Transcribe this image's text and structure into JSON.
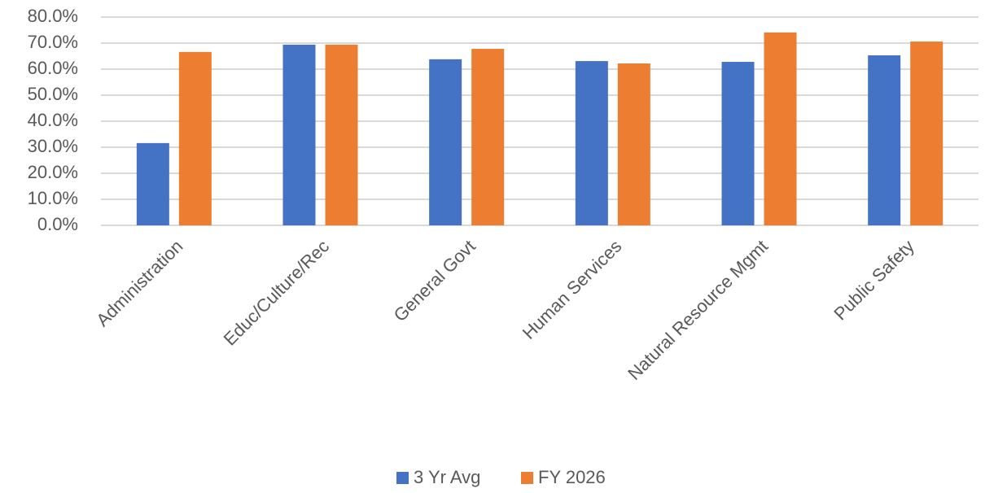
{
  "chart_data": {
    "type": "bar",
    "categories": [
      "Administration",
      "Educ/Culture/Rec",
      "General Govt",
      "Human Services",
      "Natural Resource Mgmt",
      "Public Safety"
    ],
    "series": [
      {
        "name": "3 Yr Avg",
        "color": "#4472c4",
        "values": [
          31.6,
          69.4,
          63.8,
          63.1,
          62.8,
          65.3
        ]
      },
      {
        "name": "FY 2026",
        "color": "#ed7d31",
        "values": [
          66.6,
          69.4,
          67.8,
          62.2,
          74.1,
          70.6
        ]
      }
    ],
    "ylim": [
      0,
      80
    ],
    "yticks": [
      {
        "value": 0,
        "label": "0.0%"
      },
      {
        "value": 10,
        "label": "10.0%"
      },
      {
        "value": 20,
        "label": "20.0%"
      },
      {
        "value": 30,
        "label": "30.0%"
      },
      {
        "value": 40,
        "label": "40.0%"
      },
      {
        "value": 50,
        "label": "50.0%"
      },
      {
        "value": 60,
        "label": "60.0%"
      },
      {
        "value": 70,
        "label": "70.0%"
      },
      {
        "value": 80,
        "label": "80.0%"
      }
    ],
    "grid": true,
    "legend": "bottom"
  }
}
